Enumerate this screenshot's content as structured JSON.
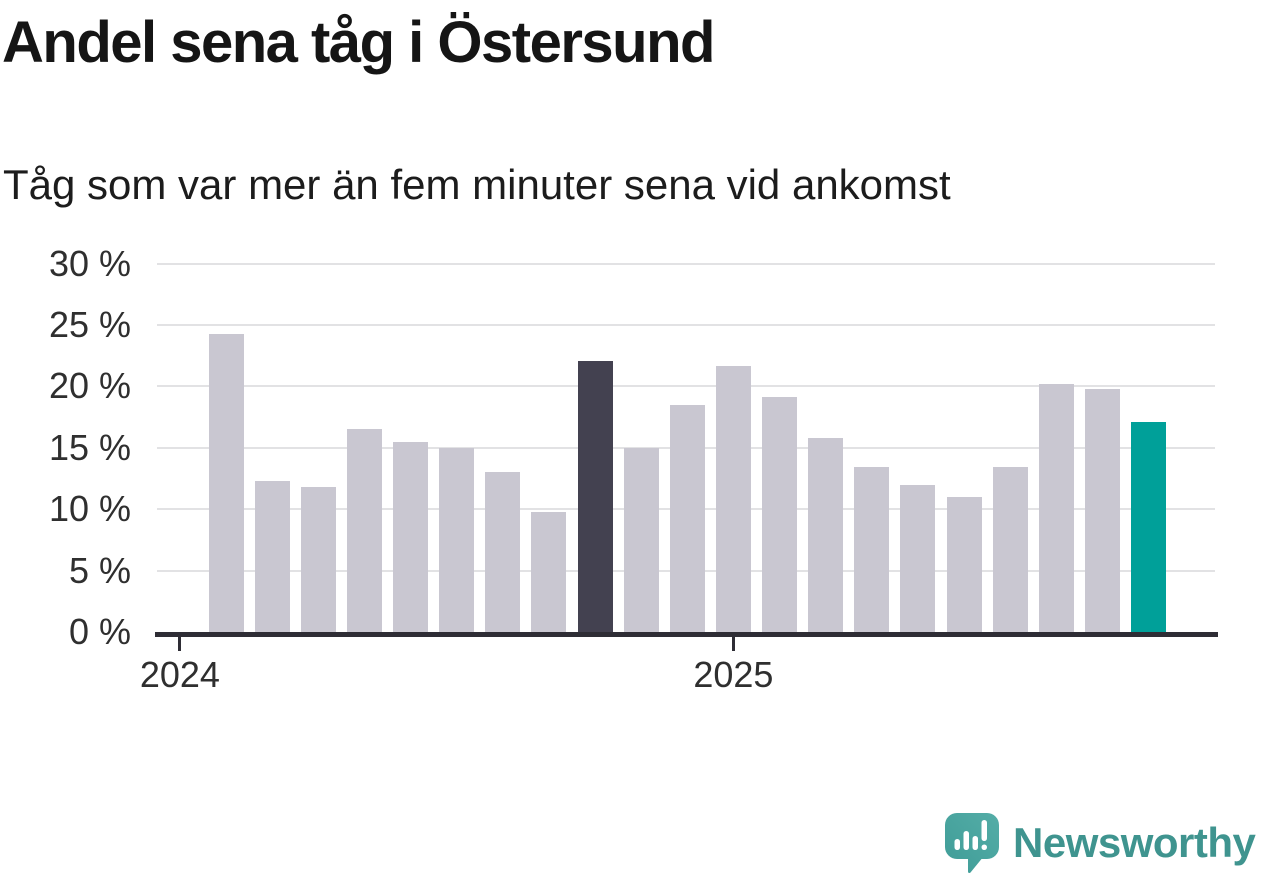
{
  "header": {
    "title": "Andel sena tåg i Östersund",
    "subtitle": "Tåg som var mer än fem minuter sena vid ankomst"
  },
  "chart_data": {
    "type": "bar",
    "title": "Andel sena tåg i Östersund",
    "subtitle": "Tåg som var mer än fem minuter sena vid ankomst",
    "unit": "%",
    "ylim": [
      0,
      30
    ],
    "grid": true,
    "legend_position": "none",
    "y_axis": {
      "ticks": [
        {
          "label": "0 %",
          "value": 0
        },
        {
          "label": "5 %",
          "value": 5
        },
        {
          "label": "10 %",
          "value": 10
        },
        {
          "label": "15 %",
          "value": 15
        },
        {
          "label": "20 %",
          "value": 20
        },
        {
          "label": "25 %",
          "value": 25
        },
        {
          "label": "30 %",
          "value": 30
        }
      ]
    },
    "x_axis": {
      "ticks": [
        {
          "label": "2024",
          "slot": 0
        },
        {
          "label": "2025",
          "slot": 12
        }
      ],
      "first_bar_slot": 1,
      "total_slots": 22
    },
    "points": [
      {
        "month": "2024-02",
        "value": 24.3,
        "role": "default"
      },
      {
        "month": "2024-03",
        "value": 12.3,
        "role": "default"
      },
      {
        "month": "2024-04",
        "value": 11.8,
        "role": "default"
      },
      {
        "month": "2024-05",
        "value": 16.5,
        "role": "default"
      },
      {
        "month": "2024-06",
        "value": 15.5,
        "role": "default"
      },
      {
        "month": "2024-07",
        "value": 15.0,
        "role": "default"
      },
      {
        "month": "2024-08",
        "value": 13.0,
        "role": "default"
      },
      {
        "month": "2024-09",
        "value": 9.8,
        "role": "default"
      },
      {
        "month": "2024-10",
        "value": 22.1,
        "role": "comparison"
      },
      {
        "month": "2024-11",
        "value": 15.0,
        "role": "default"
      },
      {
        "month": "2024-12",
        "value": 18.5,
        "role": "default"
      },
      {
        "month": "2025-01",
        "value": 21.7,
        "role": "default"
      },
      {
        "month": "2025-02",
        "value": 19.1,
        "role": "default"
      },
      {
        "month": "2025-03",
        "value": 15.8,
        "role": "default"
      },
      {
        "month": "2025-04",
        "value": 13.4,
        "role": "default"
      },
      {
        "month": "2025-05",
        "value": 12.0,
        "role": "default"
      },
      {
        "month": "2025-06",
        "value": 11.0,
        "role": "default"
      },
      {
        "month": "2025-07",
        "value": 13.4,
        "role": "default"
      },
      {
        "month": "2025-08",
        "value": 20.2,
        "role": "default"
      },
      {
        "month": "2025-09",
        "value": 19.8,
        "role": "default"
      },
      {
        "month": "2025-10",
        "value": 17.1,
        "role": "highlight"
      }
    ],
    "colors": {
      "default": "#c9c7d1",
      "comparison": "#434150",
      "highlight": "#00a099",
      "gridline": "#e2e2e4",
      "axis": "#2e2d35",
      "tick_text": "#2f2f2f"
    }
  },
  "footer": {
    "brand": "Newsworthy",
    "logo_icon": "newsworthy-speech-bubble-bar-chart-icon",
    "brand_color": "#3f948f",
    "icon_color": "#4aa7a2"
  }
}
